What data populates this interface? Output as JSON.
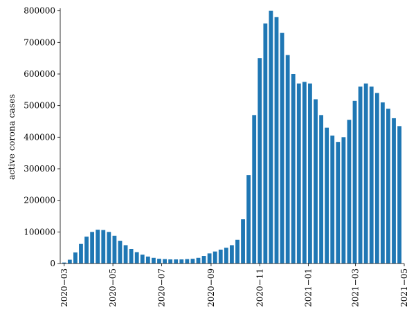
{
  "chart_data": {
    "type": "bar",
    "title": "",
    "xlabel": "",
    "ylabel": "active corona cases",
    "bar_color": "#1f77b4",
    "ylim": [
      0,
      808000
    ],
    "xlim": [
      "2020-02-25",
      "2021-05-01"
    ],
    "grid": false,
    "legend": "none",
    "y_ticks": [
      {
        "value": 0,
        "label": "0"
      },
      {
        "value": 100000,
        "label": "100000"
      },
      {
        "value": 200000,
        "label": "200000"
      },
      {
        "value": 300000,
        "label": "300000"
      },
      {
        "value": 400000,
        "label": "400000"
      },
      {
        "value": 500000,
        "label": "500000"
      },
      {
        "value": 600000,
        "label": "600000"
      },
      {
        "value": 700000,
        "label": "700000"
      },
      {
        "value": 800000,
        "label": "800000"
      }
    ],
    "x_ticks": [
      {
        "value": "2020-03-01",
        "label": "2020−03"
      },
      {
        "value": "2020-05-01",
        "label": "2020−05"
      },
      {
        "value": "2020-07-01",
        "label": "2020−07"
      },
      {
        "value": "2020-09-01",
        "label": "2020−09"
      },
      {
        "value": "2020-11-01",
        "label": "2020−11"
      },
      {
        "value": "2021-01-01",
        "label": "2021−01"
      },
      {
        "value": "2021-03-01",
        "label": "2021−03"
      },
      {
        "value": "2021-05-01",
        "label": "2021−05"
      }
    ],
    "series": [
      {
        "x": [
          "2020-03-01",
          "2020-03-08",
          "2020-03-15",
          "2020-03-22",
          "2020-03-29",
          "2020-04-05",
          "2020-04-12",
          "2020-04-19",
          "2020-04-26",
          "2020-05-03",
          "2020-05-10",
          "2020-05-17",
          "2020-05-24",
          "2020-05-31",
          "2020-06-07",
          "2020-06-14",
          "2020-06-21",
          "2020-06-28",
          "2020-07-05",
          "2020-07-12",
          "2020-07-19",
          "2020-07-26",
          "2020-08-02",
          "2020-08-09",
          "2020-08-16",
          "2020-08-23",
          "2020-08-30",
          "2020-09-06",
          "2020-09-13",
          "2020-09-20",
          "2020-09-27",
          "2020-10-04",
          "2020-10-11",
          "2020-10-18",
          "2020-10-25",
          "2020-11-01",
          "2020-11-08",
          "2020-11-15",
          "2020-11-22",
          "2020-11-29",
          "2020-12-06",
          "2020-12-13",
          "2020-12-20",
          "2020-12-27",
          "2021-01-03",
          "2021-01-10",
          "2021-01-17",
          "2021-01-24",
          "2021-01-31",
          "2021-02-07",
          "2021-02-14",
          "2021-02-21",
          "2021-02-28",
          "2021-03-07",
          "2021-03-14",
          "2021-03-21",
          "2021-03-28",
          "2021-04-04",
          "2021-04-11",
          "2021-04-18",
          "2021-04-25"
        ],
        "values": [
          3000,
          12000,
          35000,
          62000,
          85000,
          100000,
          107000,
          106000,
          100000,
          88000,
          72000,
          58000,
          46000,
          36000,
          28000,
          22000,
          18000,
          15000,
          14000,
          13000,
          13000,
          13000,
          14000,
          15000,
          18000,
          24000,
          32000,
          38000,
          44000,
          50000,
          58000,
          75000,
          140000,
          280000,
          470000,
          650000,
          760000,
          800000,
          780000,
          730000,
          660000,
          600000,
          570000,
          575000,
          570000,
          520000,
          470000,
          430000,
          405000,
          385000,
          400000,
          455000,
          515000,
          560000,
          570000,
          560000,
          540000,
          510000,
          490000,
          460000,
          435000
        ]
      }
    ]
  }
}
